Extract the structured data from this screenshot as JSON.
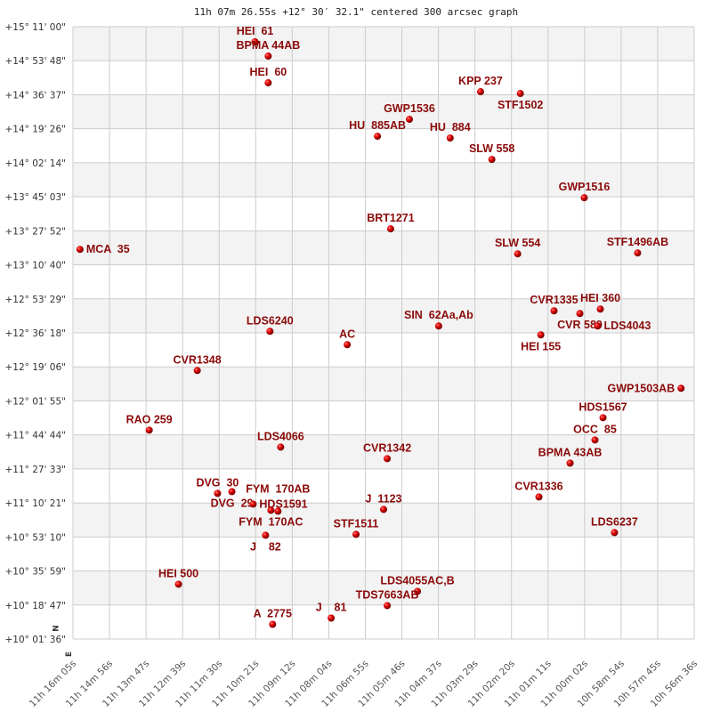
{
  "chart_data": {
    "type": "scatter",
    "title": "11h 07m 26.55s +12° 30′ 32.1\" centered 300 arcsec graph",
    "xlabel": "",
    "ylabel": "",
    "x_units": "right ascension (hours)",
    "y_units": "declination (degrees)",
    "x_reversed": true,
    "grid": true,
    "band_colors": [
      "#f3f3f3",
      "#ffffff"
    ],
    "grid_color": "#cccccc",
    "point_color": "#dd0000",
    "label_color": "#8b0a0a",
    "compass": {
      "north": "N",
      "east": "E"
    },
    "x_ticks": [
      "11h 16m 05s",
      "11h 14m 56s",
      "11h 13m 47s",
      "11h 12m 39s",
      "11h 11m 30s",
      "11h 10m 21s",
      "11h 09m 12s",
      "11h 08m 04s",
      "11h 06m 55s",
      "11h 05m 46s",
      "11h 04m 37s",
      "11h 03m 29s",
      "11h 02m 20s",
      "11h 01m 11s",
      "11h 00m 02s",
      "10h 58m 54s",
      "10h 57m 45s",
      "10h 56m 36s"
    ],
    "xlim": [
      11.26806,
      10.94333
    ],
    "y_ticks": [
      "+15° 11' 00\"",
      "+14° 53' 48\"",
      "+14° 36' 37\"",
      "+14° 19' 26\"",
      "+14° 02' 14\"",
      "+13° 45' 03\"",
      "+13° 27' 52\"",
      "+13° 10' 40\"",
      "+12° 53' 29\"",
      "+12° 36' 18\"",
      "+12° 19' 06\"",
      "+12° 01' 55\"",
      "+11° 44' 44\"",
      "+11° 27' 33\"",
      "+11° 10' 21\"",
      "+10° 53' 10\"",
      "+10° 35' 59\"",
      "+10° 18' 47\"",
      "+10° 01' 36\""
    ],
    "ylim": [
      10.02667,
      15.18333
    ],
    "points": [
      {
        "name": "HEI  61",
        "ra": 11.1729,
        "dec": 15.0558
      },
      {
        "name": "BPMA 44AB",
        "ra": 11.166,
        "dec": 14.9358
      },
      {
        "name": "HEI  60",
        "ra": 11.166,
        "dec": 14.7108
      },
      {
        "name": "KPP 237",
        "ra": 11.055,
        "dec": 14.6358
      },
      {
        "name": "STF1502",
        "ra": 11.0342,
        "dec": 14.6208
      },
      {
        "name": "GWP1536",
        "ra": 11.0922,
        "dec": 14.4032
      },
      {
        "name": "HU  885AB",
        "ra": 11.1089,
        "dec": 14.2607
      },
      {
        "name": "HU  884",
        "ra": 11.0709,
        "dec": 14.2457
      },
      {
        "name": "SLW 558",
        "ra": 11.0491,
        "dec": 14.0657
      },
      {
        "name": "GWP1516",
        "ra": 11.0008,
        "dec": 13.7432
      },
      {
        "name": "BRT1271",
        "ra": 11.102,
        "dec": 13.4807
      },
      {
        "name": "MCA  35",
        "ra": 11.2644,
        "dec": 13.3081
      },
      {
        "name": "SLW 554",
        "ra": 11.0356,
        "dec": 13.2706
      },
      {
        "name": "STF1496AB",
        "ra": 10.9729,
        "dec": 13.2781
      },
      {
        "name": "CVR1335",
        "ra": 11.0166,
        "dec": 12.7906
      },
      {
        "name": "CVR 589",
        "ra": 11.0031,
        "dec": 12.7681
      },
      {
        "name": "HEI 360",
        "ra": 10.9924,
        "dec": 12.8056
      },
      {
        "name": "LDS4043",
        "ra": 10.9938,
        "dec": 12.6631
      },
      {
        "name": "HEI 155",
        "ra": 11.0235,
        "dec": 12.5881
      },
      {
        "name": "SIN  62Aa,Ab",
        "ra": 11.0769,
        "dec": 12.6631
      },
      {
        "name": "LDS6240",
        "ra": 11.1651,
        "dec": 12.6181
      },
      {
        "name": "AC",
        "ra": 11.1247,
        "dec": 12.5056
      },
      {
        "name": "CVR1348",
        "ra": 11.2031,
        "dec": 12.2881
      },
      {
        "name": "GWP1503AB",
        "ra": 10.9502,
        "dec": 12.1381
      },
      {
        "name": "HDS1567",
        "ra": 10.991,
        "dec": 11.8905
      },
      {
        "name": "OCC  85",
        "ra": 10.9952,
        "dec": 11.703
      },
      {
        "name": "BPMA 43AB",
        "ra": 11.0082,
        "dec": 11.508
      },
      {
        "name": "RAO 259",
        "ra": 11.2282,
        "dec": 11.7855
      },
      {
        "name": "LDS4066",
        "ra": 11.1595,
        "dec": 11.643
      },
      {
        "name": "CVR1342",
        "ra": 11.1038,
        "dec": 11.5455
      },
      {
        "name": "CVR1336",
        "ra": 11.0245,
        "dec": 11.223
      },
      {
        "name": "DVG  30",
        "ra": 11.1925,
        "dec": 11.253
      },
      {
        "name": "DVG  29",
        "ra": 11.185,
        "dec": 11.268
      },
      {
        "name": "HDS1591",
        "ra": 11.1739,
        "dec": 11.163
      },
      {
        "name": "FYM  170AC",
        "ra": 11.1646,
        "dec": 11.1105
      },
      {
        "name": "FYM  170AB",
        "ra": 11.1609,
        "dec": 11.103
      },
      {
        "name": "J  1123",
        "ra": 11.1057,
        "dec": 11.118
      },
      {
        "name": "J    82",
        "ra": 11.1674,
        "dec": 10.9005
      },
      {
        "name": "STF1511",
        "ra": 11.1201,
        "dec": 10.908
      },
      {
        "name": "LDS6237",
        "ra": 10.985,
        "dec": 10.923
      },
      {
        "name": "HEI 500",
        "ra": 11.2129,
        "dec": 10.4879
      },
      {
        "name": "LDS4055AC,B",
        "ra": 11.088,
        "dec": 10.4279
      },
      {
        "name": "TDS7663AB",
        "ra": 11.1038,
        "dec": 10.3079
      },
      {
        "name": "J    81",
        "ra": 11.1331,
        "dec": 10.2029
      },
      {
        "name": "A  2775",
        "ra": 11.1637,
        "dec": 10.1504
      }
    ]
  }
}
